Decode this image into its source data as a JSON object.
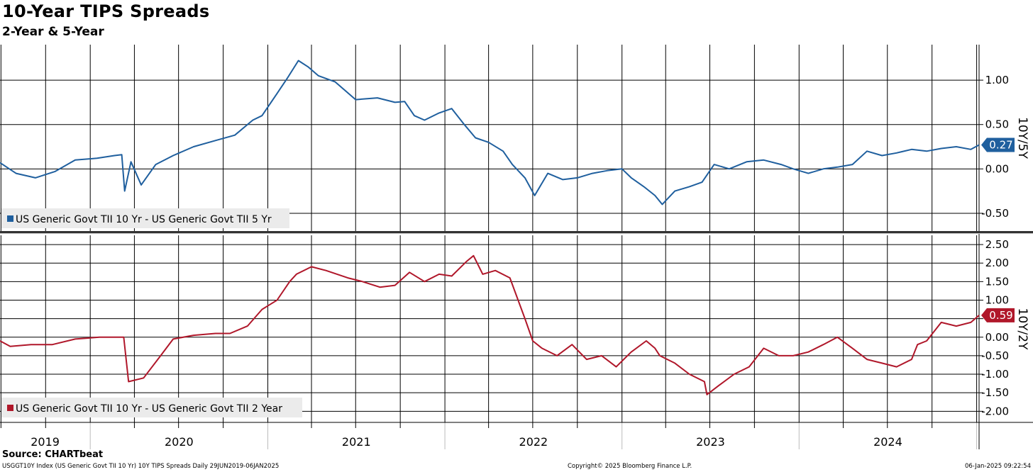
{
  "header": {
    "title": "10-Year TIPS Spreads",
    "subtitle": "2-Year & 5-Year"
  },
  "footer": {
    "source": "Source: CHARTbeat",
    "left": "USGGT10Y Index (US Generic Govt TII 10 Yr) 10Y TIPS Spreads  Daily 29JUN2019-06JAN2025",
    "center": "Copyright© 2025 Bloomberg Finance L.P.",
    "right": "06-Jan-2025 09:22:54"
  },
  "chart_data": [
    {
      "type": "line",
      "panel": "top",
      "axis_side": "right",
      "axis_title": "10Y/5Y",
      "ylim": [
        -0.7,
        1.4
      ],
      "yticks": [
        1.0,
        0.5,
        0.0,
        -0.5
      ],
      "ytick_labels": [
        "1.00",
        "0.50",
        "0.00",
        "-0.50"
      ],
      "grid": true,
      "legend_position": "bottom-left",
      "last_value_label": "0.27",
      "series": [
        {
          "name": "US Generic Govt TII 10 Yr - US Generic Govt TII 5 Yr",
          "color": "#1f5f9e",
          "x": [
            "2019-06-29",
            "2019-08-01",
            "2019-09-10",
            "2019-10-20",
            "2019-12-01",
            "2020-01-15",
            "2020-02-20",
            "2020-03-06",
            "2020-03-12",
            "2020-03-25",
            "2020-04-15",
            "2020-05-15",
            "2020-06-20",
            "2020-08-01",
            "2020-09-15",
            "2020-10-25",
            "2020-12-01",
            "2020-12-20",
            "2021-01-20",
            "2021-02-10",
            "2021-03-05",
            "2021-03-25",
            "2021-04-15",
            "2021-05-20",
            "2021-07-01",
            "2021-08-15",
            "2021-09-20",
            "2021-10-10",
            "2021-10-30",
            "2021-11-20",
            "2021-12-20",
            "2022-01-15",
            "2022-02-10",
            "2022-03-05",
            "2022-04-01",
            "2022-05-01",
            "2022-05-20",
            "2022-06-15",
            "2022-07-05",
            "2022-08-01",
            "2022-09-01",
            "2022-10-01",
            "2022-11-01",
            "2022-12-01",
            "2023-01-01",
            "2023-01-20",
            "2023-02-15",
            "2023-03-10",
            "2023-03-25",
            "2023-04-20",
            "2023-05-20",
            "2023-06-15",
            "2023-07-10",
            "2023-08-10",
            "2023-09-15",
            "2023-10-20",
            "2023-11-25",
            "2023-12-20",
            "2024-01-20",
            "2024-02-20",
            "2024-03-20",
            "2024-04-20",
            "2024-05-20",
            "2024-06-20",
            "2024-07-20",
            "2024-08-20",
            "2024-09-20",
            "2024-10-20",
            "2024-11-20",
            "2024-12-20",
            "2025-01-06"
          ],
          "values": [
            0.07,
            -0.05,
            -0.1,
            -0.03,
            0.1,
            0.12,
            0.15,
            0.16,
            -0.25,
            0.08,
            -0.18,
            0.05,
            0.15,
            0.25,
            0.32,
            0.38,
            0.55,
            0.6,
            0.85,
            1.02,
            1.22,
            1.15,
            1.05,
            0.98,
            0.78,
            0.8,
            0.75,
            0.76,
            0.6,
            0.55,
            0.63,
            0.68,
            0.5,
            0.35,
            0.3,
            0.2,
            0.05,
            -0.1,
            -0.3,
            -0.05,
            -0.12,
            -0.1,
            -0.05,
            -0.02,
            0.0,
            -0.1,
            -0.2,
            -0.3,
            -0.4,
            -0.25,
            -0.2,
            -0.15,
            0.05,
            0.0,
            0.08,
            0.1,
            0.05,
            0.0,
            -0.05,
            0.0,
            0.02,
            0.05,
            0.2,
            0.15,
            0.18,
            0.22,
            0.2,
            0.23,
            0.25,
            0.22,
            0.27
          ]
        }
      ]
    },
    {
      "type": "line",
      "panel": "bottom",
      "axis_side": "right",
      "axis_title": "10Y/2Y",
      "ylim": [
        -2.3,
        2.75
      ],
      "yticks": [
        2.5,
        2.0,
        1.5,
        1.0,
        0.5,
        0.0,
        -0.5,
        -1.0,
        -1.5,
        -2.0
      ],
      "ytick_labels": [
        "2.50",
        "2.00",
        "1.50",
        "1.00",
        "0.50",
        "0.00",
        "-0.50",
        "-1.00",
        "-1.50",
        "-2.00"
      ],
      "grid": true,
      "legend_position": "bottom-left",
      "last_value_label": "0.59",
      "series": [
        {
          "name": "US Generic Govt TII 10 Yr - US Generic Govt TII 2 Year",
          "color": "#b0172a",
          "x": [
            "2019-06-29",
            "2019-07-20",
            "2019-09-01",
            "2019-10-15",
            "2019-12-01",
            "2020-01-20",
            "2020-02-25",
            "2020-03-10",
            "2020-03-20",
            "2020-04-20",
            "2020-05-25",
            "2020-06-20",
            "2020-08-01",
            "2020-09-15",
            "2020-10-15",
            "2020-11-20",
            "2020-12-20",
            "2021-01-20",
            "2021-02-15",
            "2021-03-01",
            "2021-04-01",
            "2021-05-01",
            "2021-06-15",
            "2021-07-15",
            "2021-08-20",
            "2021-09-20",
            "2021-10-20",
            "2021-11-20",
            "2021-12-20",
            "2022-01-15",
            "2022-02-15",
            "2022-03-01",
            "2022-03-20",
            "2022-04-15",
            "2022-05-15",
            "2022-06-15",
            "2022-07-01",
            "2022-07-20",
            "2022-08-20",
            "2022-09-20",
            "2022-10-20",
            "2022-11-20",
            "2022-12-20",
            "2023-01-20",
            "2023-02-20",
            "2023-03-10",
            "2023-03-20",
            "2023-04-20",
            "2023-05-20",
            "2023-06-20",
            "2023-06-25",
            "2023-07-20",
            "2023-08-20",
            "2023-09-20",
            "2023-10-20",
            "2023-11-20",
            "2023-12-20",
            "2024-01-20",
            "2024-02-20",
            "2024-03-20",
            "2024-04-20",
            "2024-05-20",
            "2024-06-20",
            "2024-07-20",
            "2024-08-20",
            "2024-09-01",
            "2024-09-20",
            "2024-10-20",
            "2024-11-20",
            "2024-12-20",
            "2025-01-06"
          ],
          "values": [
            -0.1,
            -0.25,
            -0.2,
            -0.2,
            -0.05,
            0.0,
            0.0,
            0.0,
            -1.2,
            -1.1,
            -0.5,
            -0.05,
            0.05,
            0.1,
            0.1,
            0.3,
            0.75,
            1.0,
            1.5,
            1.7,
            1.9,
            1.8,
            1.6,
            1.5,
            1.35,
            1.4,
            1.75,
            1.5,
            1.7,
            1.65,
            2.05,
            2.2,
            1.7,
            1.8,
            1.6,
            0.5,
            -0.1,
            -0.3,
            -0.5,
            -0.2,
            -0.6,
            -0.5,
            -0.8,
            -0.4,
            -0.1,
            -0.3,
            -0.5,
            -0.7,
            -1.0,
            -1.2,
            -1.55,
            -1.3,
            -1.0,
            -0.8,
            -0.3,
            -0.5,
            -0.5,
            -0.4,
            -0.2,
            0.0,
            -0.3,
            -0.6,
            -0.7,
            -0.8,
            -0.6,
            -0.2,
            -0.1,
            0.4,
            0.3,
            0.4,
            0.59
          ]
        }
      ]
    }
  ],
  "x_axis": {
    "year_labels": [
      "2019",
      "2020",
      "2021",
      "2022",
      "2023",
      "2024"
    ],
    "domain": [
      "2019-06-29",
      "2025-01-06"
    ]
  }
}
